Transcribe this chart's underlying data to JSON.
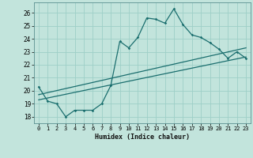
{
  "xlabel": "Humidex (Indice chaleur)",
  "background_color": "#c2e4dc",
  "grid_color": "#9ecfc7",
  "line_color": "#1a6e6e",
  "xlim": [
    -0.5,
    23.5
  ],
  "ylim": [
    17.5,
    26.8
  ],
  "xticks": [
    0,
    1,
    2,
    3,
    4,
    5,
    6,
    7,
    8,
    9,
    10,
    11,
    12,
    13,
    14,
    15,
    16,
    17,
    18,
    19,
    20,
    21,
    22,
    23
  ],
  "yticks": [
    18,
    19,
    20,
    21,
    22,
    23,
    24,
    25,
    26
  ],
  "curve1_x": [
    0,
    1,
    2,
    3,
    4,
    5,
    6,
    7,
    8,
    9,
    10,
    11,
    12,
    13,
    14,
    15,
    16,
    17,
    18,
    19,
    20,
    21,
    22,
    23
  ],
  "curve1_y": [
    20.3,
    19.2,
    19.0,
    18.0,
    18.5,
    18.5,
    18.5,
    19.0,
    20.4,
    23.8,
    23.3,
    24.1,
    25.6,
    25.5,
    25.2,
    26.3,
    25.1,
    24.3,
    24.1,
    23.7,
    23.2,
    22.5,
    23.0,
    22.5
  ],
  "curve2_x": [
    0,
    23
  ],
  "curve2_y": [
    19.7,
    23.3
  ],
  "curve3_x": [
    0,
    23
  ],
  "curve3_y": [
    19.3,
    22.6
  ]
}
